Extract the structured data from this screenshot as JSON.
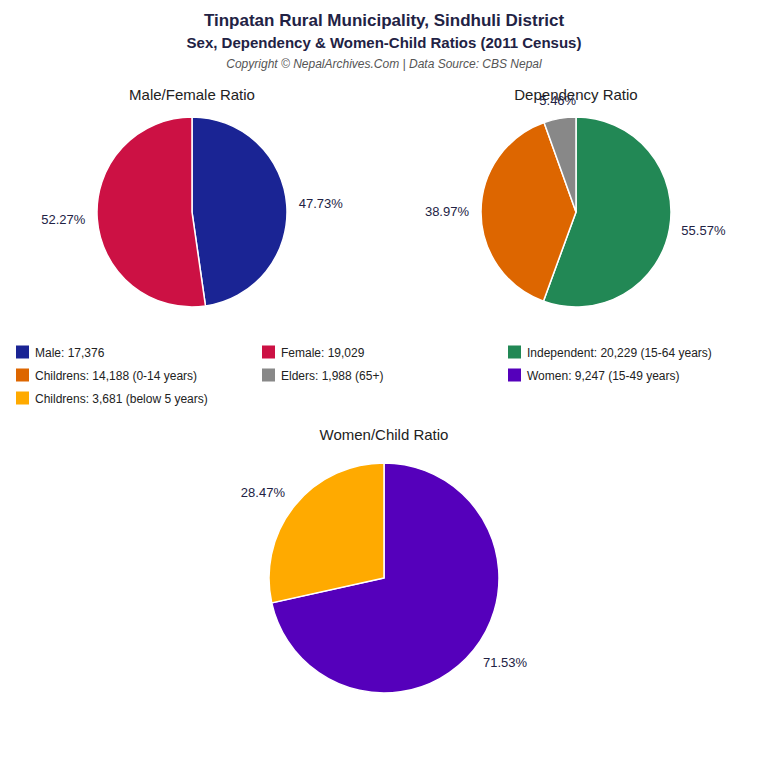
{
  "title": "Tinpatan Rural Municipality, Sindhuli District",
  "subtitle": "Sex, Dependency & Women-Child Ratios (2011 Census)",
  "annotations": [
    "Copyright © NepalArchives.Com | Data Source: CBS Nepal"
  ],
  "chart_data": [
    {
      "type": "pie",
      "title": "Male/Female Ratio",
      "categories": [
        "Male: 17,376",
        "Female: 19,029"
      ],
      "values": [
        47.73,
        52.27
      ],
      "value_labels": [
        "47.73%",
        "52.27%"
      ],
      "colors": [
        "#1a2494",
        "#cc1144"
      ],
      "data_labels": true,
      "legend": "center"
    },
    {
      "type": "pie",
      "title": "Dependency Ratio",
      "categories": [
        "Independent: 20,229 (15-64 years)",
        "Childrens: 14,188 (0-14 years)",
        "Elders: 1,988 (65+)"
      ],
      "values": [
        55.57,
        38.97,
        5.46
      ],
      "value_labels": [
        "55.57%",
        "38.97%",
        "5.46%"
      ],
      "colors": [
        "#228855",
        "#dd6600",
        "#888888"
      ],
      "data_labels": true,
      "legend": "center"
    },
    {
      "type": "pie",
      "title": "Women/Child Ratio",
      "categories": [
        "Women: 9,247 (15-49 years)",
        "Childrens: 3,681 (below 5 years)"
      ],
      "values": [
        71.53,
        28.47
      ],
      "value_labels": [
        "71.53%",
        "28.47%"
      ],
      "colors": [
        "#5500bb",
        "#ffaa00"
      ],
      "data_labels": true,
      "legend": "center"
    }
  ]
}
